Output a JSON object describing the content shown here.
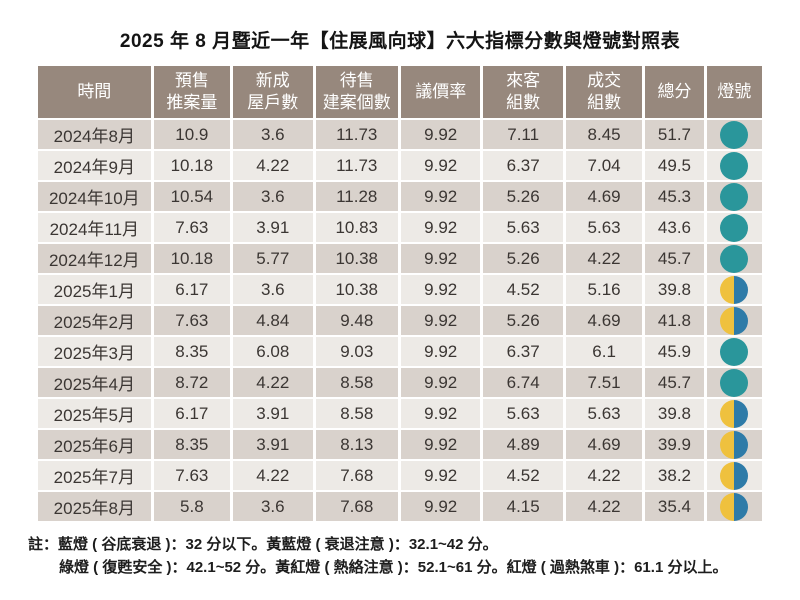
{
  "title": "2025 年 8 月暨近一年【住展風向球】六大指標分數與燈號對照表",
  "table": {
    "headers": [
      [
        "時間"
      ],
      [
        "預售",
        "推案量"
      ],
      [
        "新成",
        "屋戶數"
      ],
      [
        "待售",
        "建案個數"
      ],
      [
        "議價率"
      ],
      [
        "來客",
        "組數"
      ],
      [
        "成交",
        "組數"
      ],
      [
        "總分"
      ],
      [
        "燈號"
      ]
    ]
  },
  "chart_data": {
    "type": "table",
    "title": "2025 年 8 月暨近一年【住展風向球】六大指標分數與燈號對照表",
    "categories": [
      "2024年8月",
      "2024年9月",
      "2024年10月",
      "2024年11月",
      "2024年12月",
      "2025年1月",
      "2025年2月",
      "2025年3月",
      "2025年4月",
      "2025年5月",
      "2025年6月",
      "2025年7月",
      "2025年8月"
    ],
    "series": [
      {
        "name": "預售推案量",
        "values": [
          10.9,
          10.18,
          10.54,
          7.63,
          10.18,
          6.17,
          7.63,
          8.35,
          8.72,
          6.17,
          8.35,
          7.63,
          5.8
        ]
      },
      {
        "name": "新成屋戶數",
        "values": [
          3.6,
          4.22,
          3.6,
          3.91,
          5.77,
          3.6,
          4.84,
          6.08,
          4.22,
          3.91,
          3.91,
          4.22,
          3.6
        ]
      },
      {
        "name": "待售建案個數",
        "values": [
          11.73,
          11.73,
          11.28,
          10.83,
          10.38,
          10.38,
          9.48,
          9.03,
          8.58,
          8.58,
          8.13,
          7.68,
          7.68
        ]
      },
      {
        "name": "議價率",
        "values": [
          9.92,
          9.92,
          9.92,
          9.92,
          9.92,
          9.92,
          9.92,
          9.92,
          9.92,
          9.92,
          9.92,
          9.92,
          9.92
        ]
      },
      {
        "name": "來客組數",
        "values": [
          7.11,
          6.37,
          5.26,
          5.63,
          5.26,
          4.52,
          5.26,
          6.37,
          6.74,
          5.63,
          4.89,
          4.52,
          4.15
        ]
      },
      {
        "name": "成交組數",
        "values": [
          8.45,
          7.04,
          4.69,
          5.63,
          4.22,
          5.16,
          4.69,
          6.1,
          7.51,
          5.63,
          4.69,
          4.22,
          4.22
        ]
      },
      {
        "name": "總分",
        "values": [
          51.7,
          49.5,
          45.3,
          43.6,
          45.7,
          39.8,
          41.8,
          45.9,
          45.7,
          39.8,
          39.9,
          38.2,
          35.4
        ]
      }
    ],
    "lights": [
      "green",
      "green",
      "green",
      "green",
      "green",
      "yellow-blue",
      "yellow-blue",
      "green",
      "green",
      "yellow-blue",
      "yellow-blue",
      "yellow-blue",
      "yellow-blue"
    ]
  },
  "footnotes": [
    "註：藍燈 ( 谷底衰退 )：32 分以下。黃藍燈 ( 衰退注意 )：32.1~42 分。",
    "綠燈 ( 復甦安全 )：42.1~52 分。黃紅燈 ( 熱絡注意 )：52.1~61 分。紅燈 ( 過熱煞車 )：61.1 分以上。"
  ],
  "colors": {
    "page_bg": "#FFFFFF",
    "header_bg": "#97887D",
    "header_text": "#FFFFFF",
    "row_dark": "#D9D2CC",
    "row_light": "#EDEAE6",
    "cell_text": "#3B3633",
    "green_light": "#2A969B",
    "yellow_light": "#EFC13E",
    "blue_light": "#2E7BA8"
  }
}
